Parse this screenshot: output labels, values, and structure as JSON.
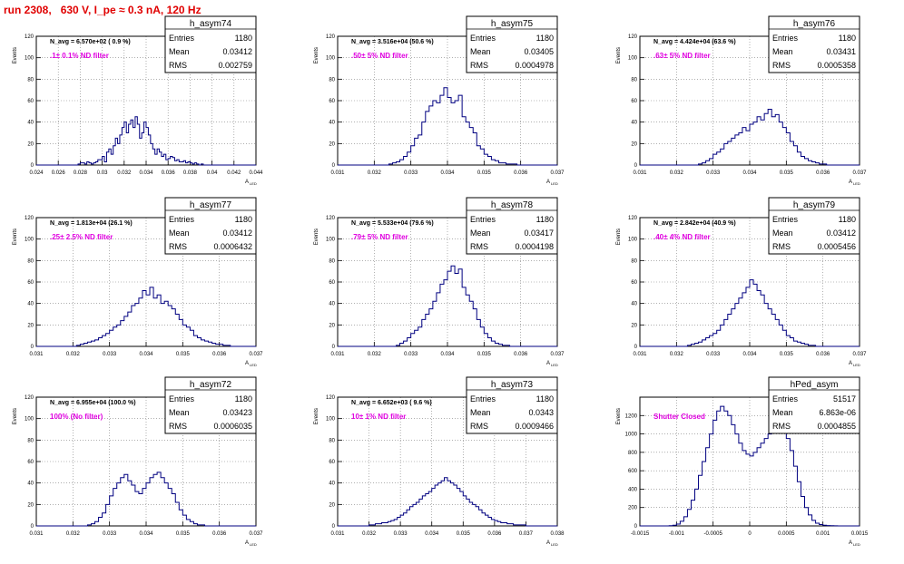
{
  "run_title": "run 2308,   630 V, I_pe ≈ 0.3 nA, 120 Hz",
  "colors": {
    "title": "#e00000",
    "histogram": "#000080",
    "annotation": "#e000e0",
    "grid": "#7f7f7f"
  },
  "common": {
    "ylabel": "Events",
    "xlabel": "A",
    "xlabel_sub": "LED",
    "stats_labels": [
      "Entries",
      "Mean",
      "RMS"
    ]
  },
  "chart_data": [
    {
      "type": "histogram",
      "name": "h_asym74",
      "navg": "N_avg = 6.570e+02 ( 0.9 %)",
      "note": ".1± 0.1% ND filter",
      "stats": {
        "entries": "1180",
        "mean": "0.03412",
        "rms": "0.002759"
      },
      "xlim": [
        0.024,
        0.044
      ],
      "ylim": [
        0,
        120
      ],
      "xticks": [
        "0.024",
        "0.026",
        "0.028",
        "0.03",
        "0.032",
        "0.034",
        "0.036",
        "0.038",
        "0.04",
        "0.042",
        "0.044"
      ],
      "yticks": [
        "0",
        "20",
        "40",
        "60",
        "80",
        "100",
        "120"
      ],
      "bin_lo": 0.024,
      "bin_width": 0.0002,
      "counts": [
        0,
        0,
        0,
        0,
        0,
        0,
        0,
        0,
        0,
        0,
        0,
        0,
        0,
        0,
        0,
        0,
        0,
        0,
        0,
        1,
        2,
        2,
        1,
        3,
        2,
        1,
        2,
        3,
        5,
        5,
        8,
        3,
        12,
        15,
        10,
        18,
        25,
        20,
        28,
        35,
        40,
        30,
        38,
        42,
        35,
        45,
        38,
        25,
        30,
        40,
        35,
        28,
        20,
        15,
        10,
        15,
        12,
        8,
        10,
        5,
        6,
        8,
        7,
        4,
        5,
        3,
        3,
        4,
        2,
        3,
        2,
        1,
        2,
        1,
        0,
        1,
        0,
        0,
        0,
        0,
        0,
        0,
        0,
        0,
        0,
        0,
        0,
        0,
        0,
        0,
        0,
        0,
        0,
        0,
        0,
        0,
        0,
        0,
        0,
        0
      ]
    },
    {
      "type": "histogram",
      "name": "h_asym75",
      "navg": "N_avg = 3.516e+04 (50.6 %)",
      "note": ".50± 5% ND filter",
      "stats": {
        "entries": "1180",
        "mean": "0.03405",
        "rms": "0.0004978"
      },
      "xlim": [
        0.031,
        0.037
      ],
      "ylim": [
        0,
        120
      ],
      "xticks": [
        "0.031",
        "0.032",
        "0.033",
        "0.034",
        "0.035",
        "0.036",
        "0.037"
      ],
      "yticks": [
        "0",
        "20",
        "40",
        "60",
        "80",
        "100",
        "120"
      ],
      "bin_lo": 0.031,
      "bin_width": 0.0001,
      "counts": [
        0,
        0,
        0,
        0,
        0,
        0,
        0,
        0,
        0,
        0,
        0,
        0,
        0,
        0,
        1,
        2,
        3,
        5,
        8,
        12,
        18,
        25,
        28,
        40,
        50,
        55,
        60,
        58,
        65,
        72,
        63,
        58,
        60,
        65,
        45,
        40,
        35,
        30,
        18,
        15,
        10,
        8,
        5,
        4,
        2,
        2,
        1,
        1,
        1,
        0,
        0,
        0,
        0,
        0,
        0,
        0,
        0,
        0,
        0,
        0
      ]
    },
    {
      "type": "histogram",
      "name": "h_asym76",
      "navg": "N_avg = 4.424e+04 (63.6 %)",
      "note": ".63± 5% ND filter",
      "stats": {
        "entries": "1180",
        "mean": "0.03431",
        "rms": "0.0005358"
      },
      "xlim": [
        0.031,
        0.037
      ],
      "ylim": [
        0,
        120
      ],
      "xticks": [
        "0.031",
        "0.032",
        "0.033",
        "0.034",
        "0.035",
        "0.036",
        "0.037"
      ],
      "yticks": [
        "0",
        "20",
        "40",
        "60",
        "80",
        "100",
        "120"
      ],
      "bin_lo": 0.031,
      "bin_width": 0.0001,
      "counts": [
        0,
        0,
        0,
        0,
        0,
        0,
        0,
        0,
        0,
        0,
        0,
        0,
        0,
        0,
        0,
        0,
        1,
        2,
        4,
        6,
        10,
        12,
        15,
        20,
        22,
        25,
        28,
        30,
        35,
        32,
        38,
        40,
        45,
        42,
        48,
        52,
        45,
        47,
        40,
        35,
        30,
        22,
        18,
        12,
        8,
        6,
        4,
        3,
        2,
        1,
        1,
        0,
        0,
        0,
        0,
        0,
        0,
        0,
        0,
        0
      ]
    },
    {
      "type": "histogram",
      "name": "h_asym77",
      "navg": "N_avg = 1.813e+04 (26.1 %)",
      "note": ".25± 2.5% ND filter",
      "stats": {
        "entries": "1180",
        "mean": "0.03412",
        "rms": "0.0006432"
      },
      "xlim": [
        0.031,
        0.037
      ],
      "ylim": [
        0,
        120
      ],
      "xticks": [
        "0.031",
        "0.032",
        "0.033",
        "0.034",
        "0.035",
        "0.036",
        "0.037"
      ],
      "yticks": [
        "0",
        "20",
        "40",
        "60",
        "80",
        "100",
        "120"
      ],
      "bin_lo": 0.031,
      "bin_width": 0.0001,
      "counts": [
        0,
        0,
        0,
        0,
        0,
        0,
        0,
        0,
        0,
        0,
        0,
        1,
        2,
        3,
        4,
        5,
        6,
        8,
        10,
        12,
        15,
        18,
        20,
        24,
        28,
        32,
        38,
        40,
        45,
        52,
        48,
        55,
        45,
        48,
        40,
        42,
        38,
        35,
        30,
        25,
        20,
        18,
        15,
        10,
        8,
        6,
        5,
        4,
        3,
        2,
        2,
        1,
        1,
        0,
        0,
        0,
        0,
        0,
        0,
        0
      ]
    },
    {
      "type": "histogram",
      "name": "h_asym78",
      "navg": "N_avg = 5.533e+04 (79.6 %)",
      "note": ".79± 5% ND filter",
      "stats": {
        "entries": "1180",
        "mean": "0.03417",
        "rms": "0.0004198"
      },
      "xlim": [
        0.031,
        0.037
      ],
      "ylim": [
        0,
        120
      ],
      "xticks": [
        "0.031",
        "0.032",
        "0.033",
        "0.034",
        "0.035",
        "0.036",
        "0.037"
      ],
      "yticks": [
        "0",
        "20",
        "40",
        "60",
        "80",
        "100",
        "120"
      ],
      "bin_lo": 0.031,
      "bin_width": 0.0001,
      "counts": [
        0,
        0,
        0,
        0,
        0,
        0,
        0,
        0,
        0,
        0,
        0,
        0,
        0,
        0,
        0,
        0,
        1,
        3,
        5,
        8,
        12,
        15,
        18,
        25,
        30,
        35,
        42,
        50,
        58,
        62,
        70,
        75,
        68,
        72,
        55,
        48,
        42,
        35,
        25,
        18,
        12,
        8,
        5,
        3,
        2,
        1,
        1,
        0,
        0,
        0,
        0,
        0,
        0,
        0,
        0,
        0,
        0,
        0,
        0,
        0
      ]
    },
    {
      "type": "histogram",
      "name": "h_asym79",
      "navg": "N_avg = 2.842e+04 (40.9 %)",
      "note": ".40± 4% ND filter",
      "stats": {
        "entries": "1180",
        "mean": "0.03412",
        "rms": "0.0005456"
      },
      "xlim": [
        0.031,
        0.037
      ],
      "ylim": [
        0,
        120
      ],
      "xticks": [
        "0.031",
        "0.032",
        "0.033",
        "0.034",
        "0.035",
        "0.036",
        "0.037"
      ],
      "yticks": [
        "0",
        "20",
        "40",
        "60",
        "80",
        "100",
        "120"
      ],
      "bin_lo": 0.031,
      "bin_width": 0.0001,
      "counts": [
        0,
        0,
        0,
        0,
        0,
        0,
        0,
        0,
        0,
        0,
        0,
        0,
        0,
        1,
        2,
        3,
        4,
        6,
        8,
        10,
        12,
        15,
        20,
        25,
        30,
        35,
        40,
        45,
        50,
        55,
        62,
        58,
        52,
        48,
        40,
        35,
        30,
        25,
        20,
        15,
        10,
        8,
        5,
        4,
        3,
        2,
        1,
        1,
        0,
        0,
        0,
        0,
        0,
        0,
        0,
        0,
        0,
        0,
        0,
        0
      ]
    },
    {
      "type": "histogram",
      "name": "h_asym72",
      "navg": "N_avg = 6.955e+04 (100.0 %)",
      "note": "100% (No filter)",
      "stats": {
        "entries": "1180",
        "mean": "0.03423",
        "rms": "0.0006035"
      },
      "xlim": [
        0.031,
        0.037
      ],
      "ylim": [
        0,
        120
      ],
      "xticks": [
        "0.031",
        "0.032",
        "0.033",
        "0.034",
        "0.035",
        "0.036",
        "0.037"
      ],
      "yticks": [
        "0",
        "20",
        "40",
        "60",
        "80",
        "100",
        "120"
      ],
      "bin_lo": 0.031,
      "bin_width": 0.0001,
      "counts": [
        0,
        0,
        0,
        0,
        0,
        0,
        0,
        0,
        0,
        0,
        0,
        0,
        0,
        0,
        1,
        2,
        4,
        8,
        12,
        20,
        28,
        35,
        40,
        45,
        48,
        42,
        38,
        32,
        30,
        35,
        40,
        45,
        48,
        50,
        45,
        40,
        35,
        30,
        22,
        15,
        10,
        6,
        4,
        2,
        1,
        1,
        0,
        0,
        0,
        0,
        0,
        0,
        0,
        0,
        0,
        0,
        0,
        0,
        0,
        0
      ]
    },
    {
      "type": "histogram",
      "name": "h_asym73",
      "navg": "N_avg = 6.652e+03 ( 9.6 %)",
      "note": "10± 1% ND filter",
      "stats": {
        "entries": "1180",
        "mean": "0.0343",
        "rms": "0.0009466"
      },
      "xlim": [
        0.031,
        0.038
      ],
      "ylim": [
        0,
        120
      ],
      "xticks": [
        "0.031",
        "0.032",
        "0.033",
        "0.034",
        "0.035",
        "0.036",
        "0.037",
        "0.038"
      ],
      "yticks": [
        "0",
        "20",
        "40",
        "60",
        "80",
        "100",
        "120"
      ],
      "bin_lo": 0.031,
      "bin_width": 0.0001,
      "counts": [
        0,
        0,
        0,
        0,
        0,
        0,
        0,
        0,
        0,
        0,
        1,
        1,
        2,
        2,
        3,
        3,
        4,
        5,
        6,
        8,
        10,
        12,
        15,
        18,
        20,
        22,
        25,
        28,
        30,
        32,
        35,
        38,
        40,
        42,
        45,
        42,
        40,
        38,
        35,
        32,
        28,
        25,
        22,
        20,
        18,
        15,
        12,
        10,
        8,
        6,
        5,
        4,
        3,
        3,
        2,
        2,
        1,
        1,
        1,
        1,
        0,
        0,
        0,
        0,
        0,
        0,
        0,
        0,
        0,
        0
      ]
    },
    {
      "type": "histogram",
      "name": "hPed_asym",
      "navg": "",
      "note": "Shutter Closed",
      "stats": {
        "entries": "51517",
        "mean": "6.863e-06",
        "rms": "0.0004855"
      },
      "xlim": [
        -0.0015,
        0.0015
      ],
      "ylim": [
        0,
        1400
      ],
      "xticks": [
        "-0.0015",
        "-0.001",
        "-0.0005",
        "0",
        "0.0005",
        "0.001",
        "0.0015"
      ],
      "yticks": [
        "0",
        "200",
        "400",
        "600",
        "800",
        "1000",
        "1200"
      ],
      "bin_lo": -0.0015,
      "bin_width": 5e-05,
      "counts": [
        0,
        0,
        0,
        0,
        0,
        0,
        0,
        0,
        2,
        8,
        20,
        50,
        100,
        180,
        280,
        400,
        550,
        700,
        850,
        1000,
        1150,
        1250,
        1300,
        1250,
        1200,
        1100,
        1000,
        900,
        820,
        780,
        760,
        800,
        850,
        900,
        950,
        1000,
        1050,
        1100,
        1120,
        1050,
        950,
        820,
        650,
        480,
        320,
        200,
        120,
        60,
        30,
        15,
        8,
        4,
        2,
        1,
        0,
        0,
        0,
        0,
        0,
        0
      ]
    }
  ]
}
